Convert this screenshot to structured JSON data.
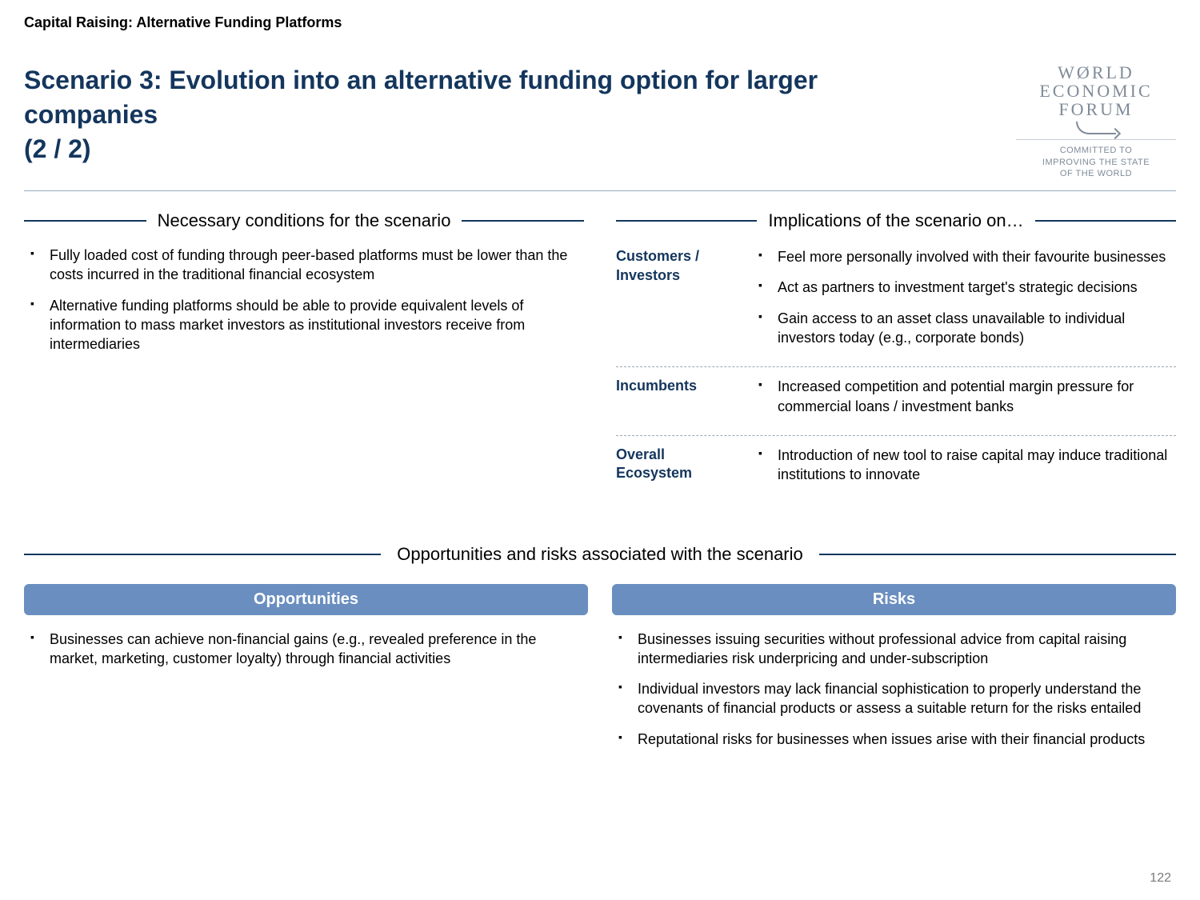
{
  "header": "Capital Raising: Alternative Funding Platforms",
  "title_l1": "Scenario 3: Evolution into an alternative funding option for larger companies",
  "title_l2": "(2 / 2)",
  "logo": {
    "l1": "WØRLD",
    "l2": "ECONOMIC",
    "l3": "FORUM",
    "tag_l1": "COMMITTED TO",
    "tag_l2": "IMPROVING THE STATE",
    "tag_l3": "OF THE WORLD"
  },
  "left": {
    "heading": "Necessary conditions for the scenario",
    "b1": "Fully loaded cost of funding through peer-based platforms must be lower than the costs incurred in the traditional financial ecosystem",
    "b2": "Alternative funding platforms should be able to provide equivalent levels of information to mass market investors as institutional investors receive from intermediaries"
  },
  "right": {
    "heading": "Implications of the scenario on…",
    "g1_label": "Customers / Investors",
    "g1_b1": "Feel more personally involved with their favourite businesses",
    "g1_b2": "Act as partners to investment target's strategic decisions",
    "g1_b3": "Gain access to an asset class unavailable to individual investors today (e.g., corporate bonds)",
    "g2_label": "Incumbents",
    "g2_b1": "Increased competition and potential margin pressure for commercial loans / investment banks",
    "g3_label": "Overall Ecosystem",
    "g3_b1": "Introduction of new tool to raise capital may induce traditional institutions to innovate"
  },
  "opp_risk_heading": "Opportunities and risks associated with the scenario",
  "opp": {
    "title": "Opportunities",
    "b1": "Businesses can achieve non-financial gains (e.g., revealed preference in the market, marketing, customer loyalty) through financial activities"
  },
  "risk": {
    "title": "Risks",
    "b1": "Businesses issuing securities without professional advice from capital raising intermediaries risk underpricing and under-subscription",
    "b2": "Individual investors may lack financial sophistication to properly understand the covenants of financial products or assess a suitable return for the risks entailed",
    "b3": "Reputational risks for businesses when issues arise with their financial products"
  },
  "page_number": "122",
  "colors": {
    "title_color": "#14365d",
    "pill_bg": "#6a8ebf",
    "logo_gray": "#7f8b99"
  }
}
